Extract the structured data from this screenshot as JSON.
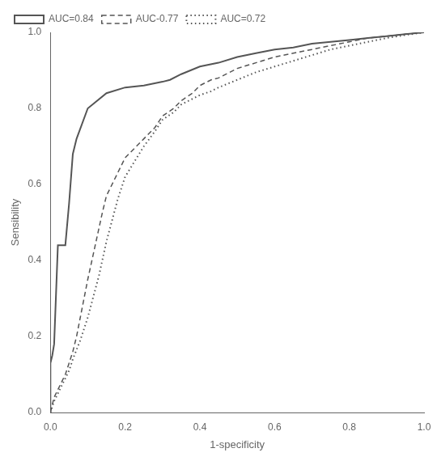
{
  "chart_data": {
    "type": "line",
    "xlabel": "1-specificity",
    "ylabel": "Sensibility",
    "xlim": [
      0.0,
      1.0
    ],
    "ylim": [
      0.0,
      1.0
    ],
    "xticks": [
      {
        "value": 0.0,
        "label": "0.0"
      },
      0.2,
      0.4,
      0.6,
      0.8,
      {
        "value": 1.0,
        "label": "1.0"
      }
    ],
    "yticks": [
      {
        "value": 0.0,
        "label": "0.0"
      },
      0.2,
      0.4,
      0.6,
      0.8,
      {
        "value": 1.0,
        "label": "1.0"
      }
    ],
    "grid": false,
    "legend": "upper left",
    "series": [
      {
        "name": "AUC=0.84",
        "color": "#555555",
        "line_style": "solid",
        "x": [
          0.0,
          0.0,
          0.005,
          0.01,
          0.02,
          0.025,
          0.04,
          0.05,
          0.06,
          0.07,
          0.1,
          0.15,
          0.2,
          0.25,
          0.3,
          0.32,
          0.35,
          0.4,
          0.45,
          0.5,
          0.55,
          0.6,
          0.65,
          0.7,
          0.75,
          0.8,
          0.85,
          0.9,
          0.95,
          1.0
        ],
        "values": [
          0.0,
          0.13,
          0.15,
          0.18,
          0.44,
          0.44,
          0.44,
          0.55,
          0.68,
          0.72,
          0.8,
          0.84,
          0.855,
          0.86,
          0.87,
          0.875,
          0.89,
          0.91,
          0.92,
          0.935,
          0.945,
          0.955,
          0.96,
          0.97,
          0.975,
          0.98,
          0.985,
          0.99,
          0.995,
          1.0
        ]
      },
      {
        "name": "AUC-0.77",
        "color": "#555555",
        "line_style": "dashed",
        "x": [
          0.0,
          0.005,
          0.01,
          0.02,
          0.03,
          0.04,
          0.05,
          0.06,
          0.07,
          0.08,
          0.1,
          0.12,
          0.14,
          0.15,
          0.18,
          0.2,
          0.25,
          0.28,
          0.3,
          0.33,
          0.35,
          0.38,
          0.4,
          0.43,
          0.45,
          0.5,
          0.55,
          0.6,
          0.65,
          0.7,
          0.75,
          0.8,
          0.85,
          0.9,
          0.95,
          1.0
        ],
        "values": [
          0.0,
          0.02,
          0.04,
          0.06,
          0.08,
          0.1,
          0.13,
          0.16,
          0.2,
          0.25,
          0.35,
          0.44,
          0.53,
          0.57,
          0.63,
          0.67,
          0.72,
          0.75,
          0.78,
          0.8,
          0.82,
          0.84,
          0.86,
          0.875,
          0.88,
          0.905,
          0.92,
          0.935,
          0.945,
          0.955,
          0.965,
          0.975,
          0.985,
          0.99,
          0.995,
          1.0
        ]
      },
      {
        "name": "AUC=0.72",
        "color": "#555555",
        "line_style": "dotted",
        "x": [
          0.0,
          0.005,
          0.01,
          0.02,
          0.03,
          0.04,
          0.05,
          0.06,
          0.08,
          0.1,
          0.13,
          0.15,
          0.18,
          0.2,
          0.25,
          0.28,
          0.3,
          0.33,
          0.35,
          0.38,
          0.4,
          0.43,
          0.45,
          0.5,
          0.55,
          0.6,
          0.65,
          0.7,
          0.75,
          0.8,
          0.85,
          0.9,
          0.95,
          1.0
        ],
        "values": [
          0.0,
          0.015,
          0.03,
          0.05,
          0.07,
          0.09,
          0.11,
          0.14,
          0.19,
          0.25,
          0.36,
          0.45,
          0.56,
          0.62,
          0.7,
          0.74,
          0.77,
          0.79,
          0.81,
          0.825,
          0.835,
          0.845,
          0.855,
          0.875,
          0.895,
          0.91,
          0.925,
          0.94,
          0.955,
          0.965,
          0.975,
          0.985,
          0.993,
          1.0
        ]
      }
    ]
  }
}
